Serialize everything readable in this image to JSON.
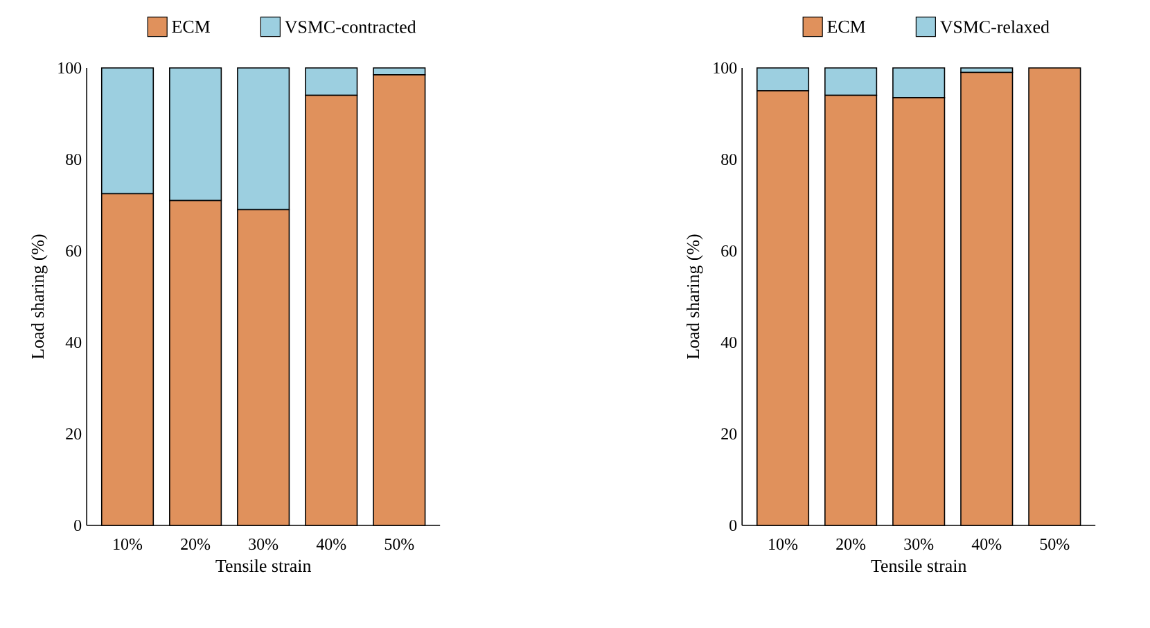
{
  "chart_data": [
    {
      "type": "bar",
      "stacked": true,
      "xlabel": "Tensile strain",
      "ylabel": "Load sharing (%)",
      "categories": [
        "10%",
        "20%",
        "30%",
        "40%",
        "50%"
      ],
      "series": [
        {
          "name": "ECM",
          "color": "#e0915c",
          "values": [
            72.5,
            71,
            69,
            94,
            98.5
          ]
        },
        {
          "name": "VSMC-contracted",
          "color": "#9ccfe0",
          "values": [
            27.5,
            29,
            31,
            6,
            1.5
          ]
        }
      ],
      "ylim": [
        0,
        100
      ],
      "yticks": [
        0,
        20,
        40,
        60,
        80,
        100
      ],
      "legend": "top",
      "grid": false
    },
    {
      "type": "bar",
      "stacked": true,
      "xlabel": "Tensile strain",
      "ylabel": "Load sharing (%)",
      "categories": [
        "10%",
        "20%",
        "30%",
        "40%",
        "50%"
      ],
      "series": [
        {
          "name": "ECM",
          "color": "#e0915c",
          "values": [
            95,
            94,
            93.5,
            99,
            100
          ]
        },
        {
          "name": "VSMC-relaxed",
          "color": "#9ccfe0",
          "values": [
            5,
            6,
            6.5,
            1,
            0
          ]
        }
      ],
      "ylim": [
        0,
        100
      ],
      "yticks": [
        0,
        20,
        40,
        60,
        80,
        100
      ],
      "legend": "top",
      "grid": false
    }
  ]
}
